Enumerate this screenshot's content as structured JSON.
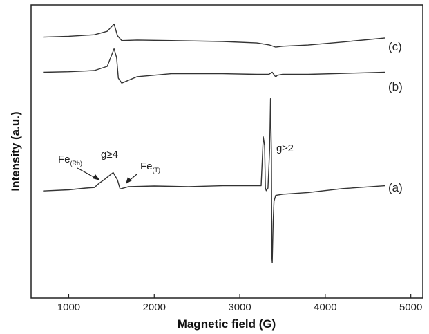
{
  "chart_data": {
    "type": "line",
    "title": "",
    "xlabel": "Magnetic field (G)",
    "ylabel": "Intensity  (a.u.)",
    "xlim": [
      560,
      5140
    ],
    "xticks": [
      1000,
      2000,
      3000,
      4000,
      5000
    ],
    "ylim": [
      0,
      100
    ],
    "grid": false,
    "legend": "none",
    "line_color": "#333333",
    "series": [
      {
        "name": "(c)",
        "x": [
          700,
          1000,
          1300,
          1450,
          1530,
          1570,
          1620,
          1800,
          2200,
          2800,
          3200,
          3350,
          3420,
          3500,
          3800,
          4200,
          4700
        ],
        "y": [
          89.0,
          89.3,
          89.8,
          91.0,
          93.5,
          89.5,
          87.8,
          88.0,
          87.8,
          87.5,
          87.0,
          86.3,
          85.6,
          85.9,
          86.3,
          87.3,
          88.7
        ]
      },
      {
        "name": "(b)",
        "x": [
          700,
          1000,
          1300,
          1450,
          1530,
          1560,
          1580,
          1620,
          1800,
          2200,
          2800,
          3200,
          3340,
          3380,
          3420,
          3440,
          3500,
          3800,
          4200,
          4700
        ],
        "y": [
          77.0,
          77.2,
          77.6,
          79.0,
          85.0,
          82.0,
          75.0,
          73.3,
          75.5,
          76.5,
          76.5,
          76.3,
          76.3,
          77.0,
          75.4,
          76.0,
          76.3,
          76.3,
          76.6,
          77.0
        ]
      },
      {
        "name": "(a)",
        "x": [
          700,
          1000,
          1200,
          1300,
          1350,
          1420,
          1520,
          1570,
          1600,
          1700,
          2000,
          2400,
          2800,
          3250,
          3275,
          3290,
          3300,
          3310,
          3330,
          3350,
          3360,
          3370,
          3375,
          3380,
          3390,
          3400,
          3420,
          3500,
          3800,
          4200,
          4700
        ],
        "y": [
          36.5,
          36.9,
          37.5,
          37.7,
          39.0,
          40.5,
          42.8,
          40.3,
          37.2,
          38.0,
          38.2,
          38.0,
          38.3,
          38.3,
          55.0,
          52.0,
          37.5,
          36.6,
          37.5,
          51.0,
          68.0,
          50.0,
          14.0,
          12.0,
          26.0,
          33.0,
          35.0,
          35.4,
          36.0,
          37.3,
          38.3
        ]
      }
    ],
    "annotations": {
      "fe_rh": "Fe",
      "fe_rh_sub": "(Rh)",
      "g4": "g≥4",
      "fe_t": "Fe",
      "fe_t_sub": "(T)",
      "g2": "g≥2"
    }
  }
}
